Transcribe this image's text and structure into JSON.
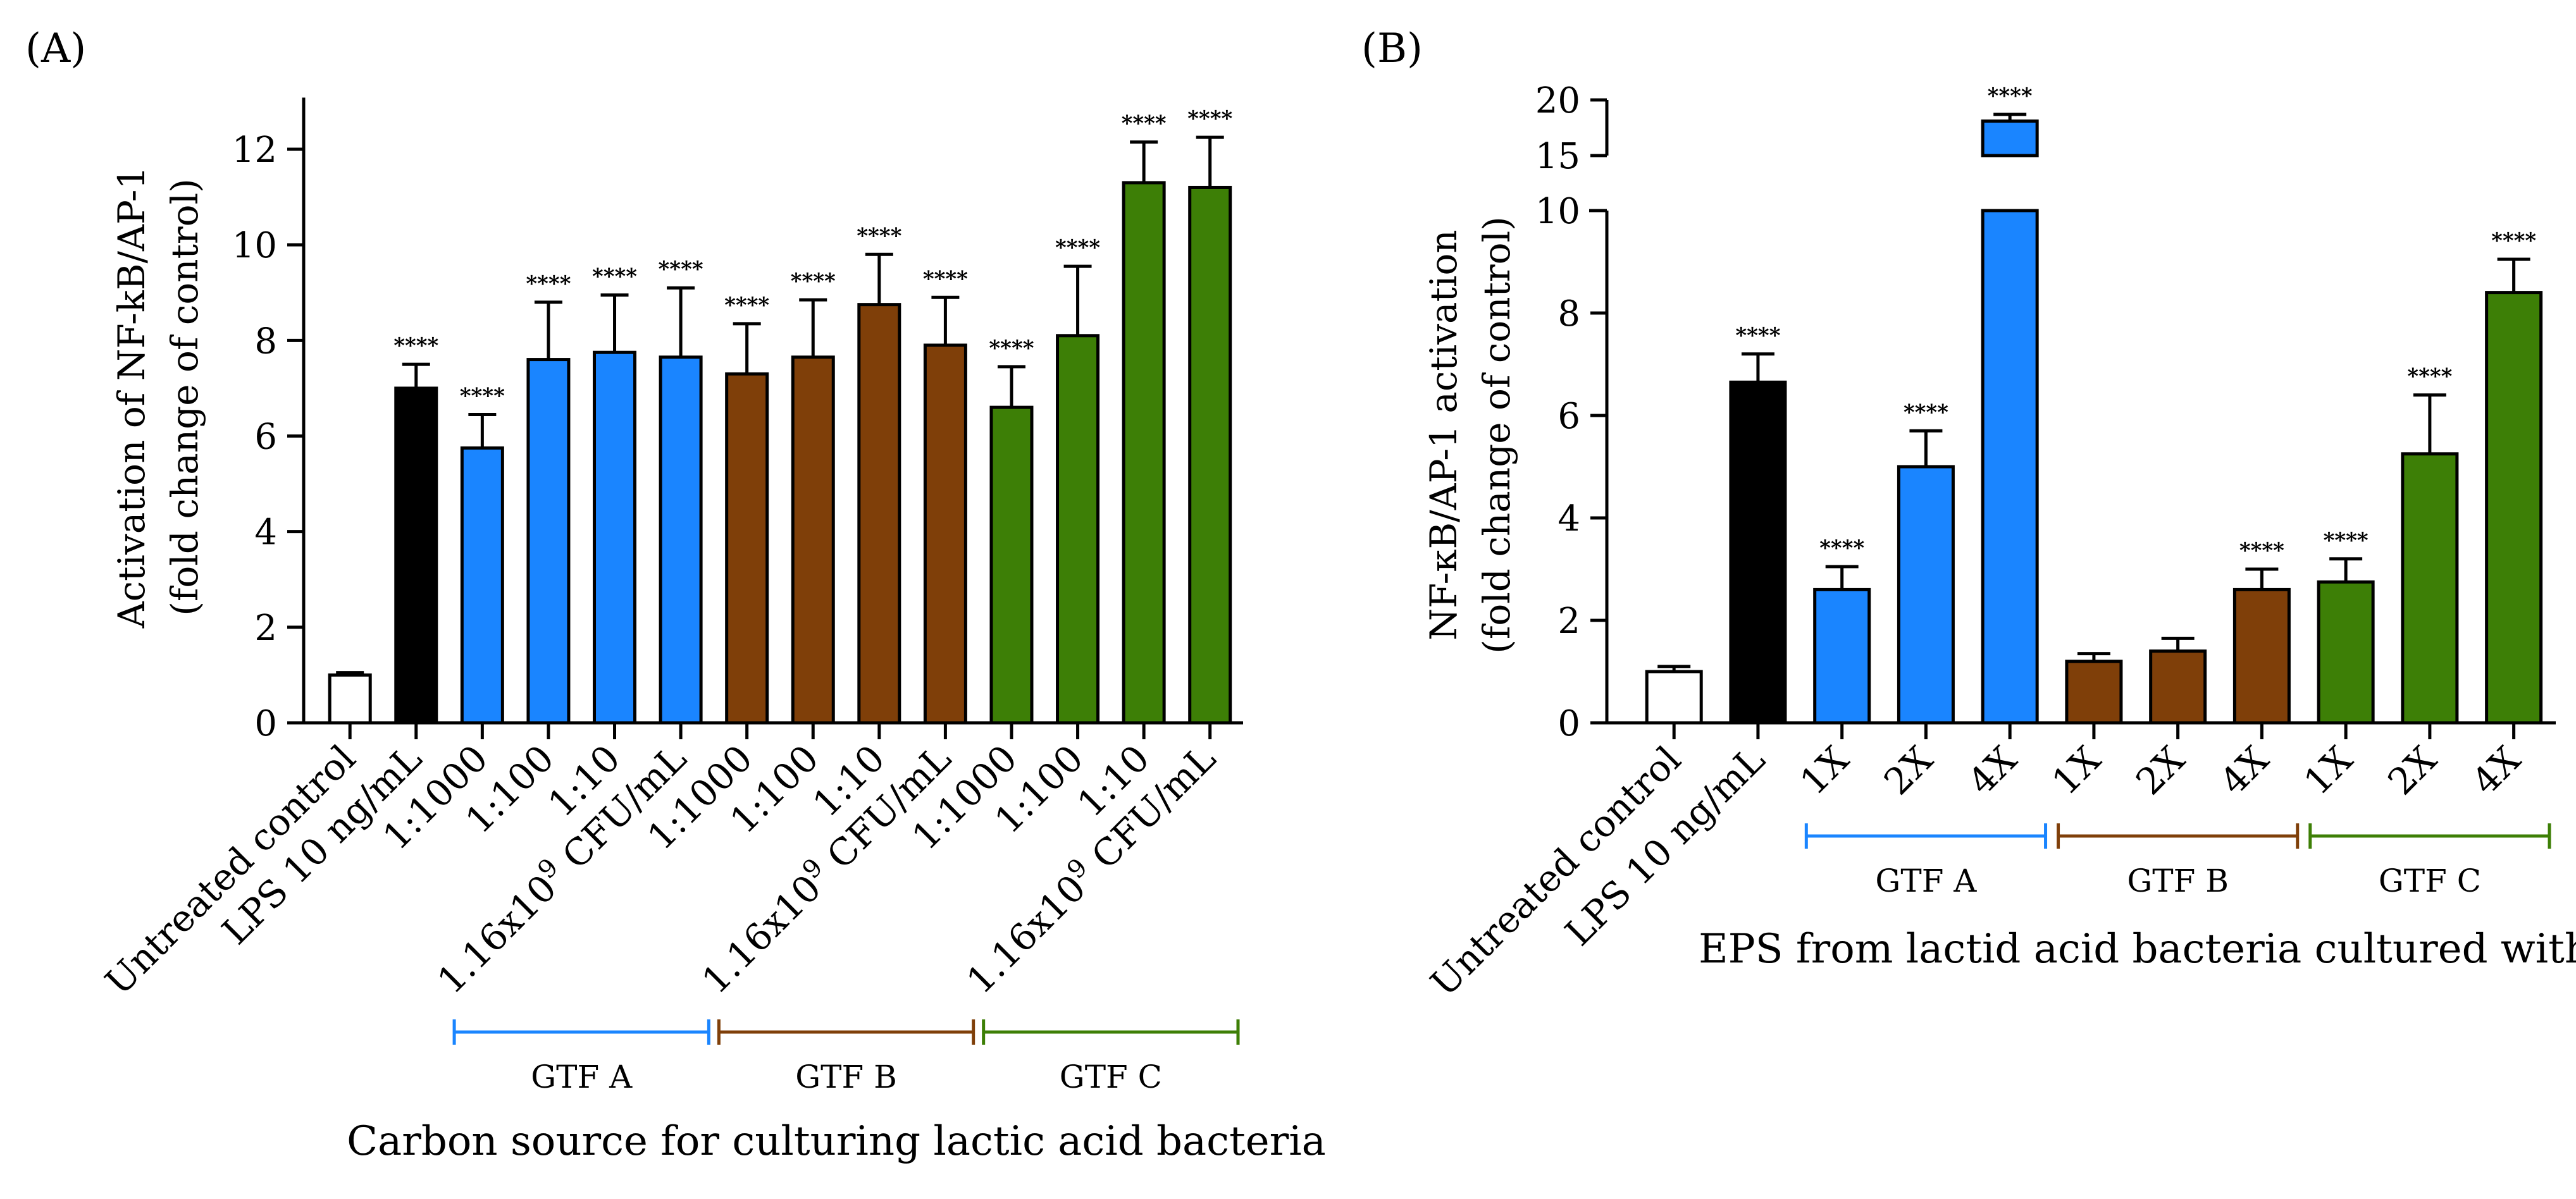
{
  "chart_data": [
    {
      "type": "bar",
      "panel_label": "(A)",
      "ylabel_line1": "Activation of NF-kB/AP-1",
      "ylabel_line2": "(fold change of control)",
      "xlabel": "Carbon source for culturing lactic acid bacteria",
      "ylim": [
        0,
        13
      ],
      "yticks": [
        0,
        2,
        4,
        6,
        8,
        10,
        12
      ],
      "categories": [
        "Untreated control",
        "LPS 10 ng/mL",
        "1:1000",
        "1:100",
        "1:10",
        "1.16x10^9 CFU/mL",
        "1:1000",
        "1:100",
        "1:10",
        "1.16x10^9 CFU/mL",
        "1:1000",
        "1:100",
        "1:10",
        "1.16x10^9 CFU/mL"
      ],
      "values": [
        1.0,
        7.0,
        5.75,
        7.6,
        7.75,
        7.65,
        7.3,
        7.65,
        8.75,
        7.9,
        6.6,
        8.1,
        11.3,
        11.2
      ],
      "errors": [
        0.05,
        0.5,
        0.7,
        1.2,
        1.2,
        1.45,
        1.05,
        1.2,
        1.05,
        1.0,
        0.85,
        1.45,
        0.85,
        1.05
      ],
      "significance": [
        "",
        "****",
        "****",
        "****",
        "****",
        "****",
        "****",
        "****",
        "****",
        "****",
        "****",
        "****",
        "****",
        "****"
      ],
      "bar_colors": [
        "#ffffff",
        "#000000",
        "#1a85ff",
        "#1a85ff",
        "#1a85ff",
        "#1a85ff",
        "#7f3f09",
        "#7f3f09",
        "#7f3f09",
        "#7f3f09",
        "#3d7f06",
        "#3d7f06",
        "#3d7f06",
        "#3d7f06"
      ],
      "groups": [
        {
          "name": "GTF A",
          "color": "#1a85ff",
          "from": 2,
          "to": 5
        },
        {
          "name": "GTF B",
          "color": "#7f3f09",
          "from": 6,
          "to": 9
        },
        {
          "name": "GTF C",
          "color": "#3d7f06",
          "from": 10,
          "to": 13
        }
      ]
    },
    {
      "type": "bar",
      "panel_label": "(B)",
      "ylabel_line1": "NF-κB/AP-1 activation",
      "ylabel_line2": "(fold change of control)",
      "xlabel": "EPS from lactid acid bacteria cultured with",
      "broken_axis": true,
      "ylim_lower": [
        0,
        10
      ],
      "ylim_upper": [
        15,
        20
      ],
      "yticks_lower": [
        0,
        2,
        4,
        6,
        8,
        10
      ],
      "yticks_upper": [
        15,
        20
      ],
      "categories": [
        "Untreated control",
        "LPS 10 ng/mL",
        "1X",
        "2X",
        "4X",
        "1X",
        "2X",
        "4X",
        "1X",
        "2X",
        "4X"
      ],
      "values": [
        1.0,
        6.65,
        2.6,
        5.0,
        18.1,
        1.2,
        1.4,
        2.6,
        2.75,
        5.25,
        8.4
      ],
      "errors": [
        0.1,
        0.55,
        0.45,
        0.7,
        0.6,
        0.15,
        0.25,
        0.4,
        0.45,
        1.15,
        0.65
      ],
      "significance": [
        "",
        "****",
        "****",
        "****",
        "****",
        "",
        "",
        "****",
        "****",
        "****",
        "****"
      ],
      "bar_colors": [
        "#ffffff",
        "#000000",
        "#1a85ff",
        "#1a85ff",
        "#1a85ff",
        "#7f3f09",
        "#7f3f09",
        "#7f3f09",
        "#3d7f06",
        "#3d7f06",
        "#3d7f06"
      ],
      "groups": [
        {
          "name": "GTF A",
          "color": "#1a85ff",
          "from": 2,
          "to": 4
        },
        {
          "name": "GTF B",
          "color": "#7f3f09",
          "from": 5,
          "to": 7
        },
        {
          "name": "GTF C",
          "color": "#3d7f06",
          "from": 8,
          "to": 10
        }
      ]
    }
  ]
}
